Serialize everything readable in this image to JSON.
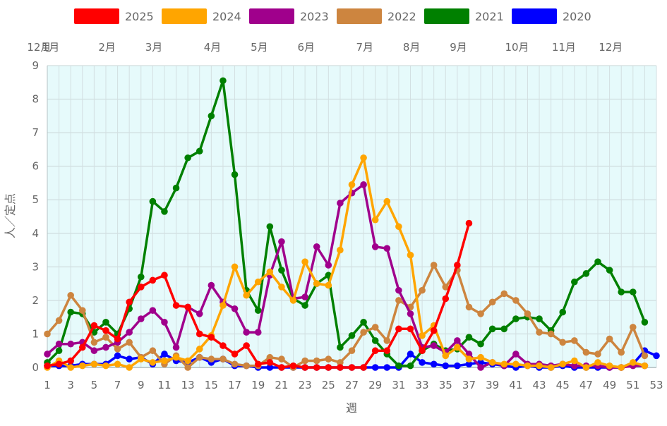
{
  "chart_data": {
    "type": "line",
    "xlabel": "週",
    "ylabel": "人／定点",
    "xlim": [
      1,
      53
    ],
    "ylim": [
      0,
      9
    ],
    "yticks": [
      0,
      1,
      2,
      3,
      4,
      5,
      6,
      7,
      8,
      9
    ],
    "xticks": [
      1,
      3,
      5,
      7,
      9,
      11,
      13,
      15,
      17,
      19,
      21,
      23,
      25,
      27,
      29,
      31,
      33,
      35,
      37,
      39,
      41,
      43,
      45,
      47,
      49,
      51,
      53
    ],
    "grid": true,
    "legend_position": "top",
    "plot_background": "#e6fafb",
    "month_labels": [
      {
        "label": "12月",
        "x": 0.3
      },
      {
        "label": "1月",
        "x": 1.3
      },
      {
        "label": "2月",
        "x": 6.1
      },
      {
        "label": "3月",
        "x": 10.1
      },
      {
        "label": "4月",
        "x": 15.1
      },
      {
        "label": "5月",
        "x": 19.1
      },
      {
        "label": "6月",
        "x": 23.1
      },
      {
        "label": "7月",
        "x": 28.1
      },
      {
        "label": "8月",
        "x": 32.1
      },
      {
        "label": "9月",
        "x": 36.1
      },
      {
        "label": "10月",
        "x": 41.1
      },
      {
        "label": "11月",
        "x": 45.1
      },
      {
        "label": "12月",
        "x": 49.1
      }
    ],
    "series": [
      {
        "name": "2025",
        "color": "#ff0000",
        "x": [
          1,
          2,
          3,
          4,
          5,
          6,
          7,
          8,
          9,
          10,
          11,
          12,
          13,
          14,
          15,
          16,
          17,
          18,
          19,
          20,
          21,
          22,
          23,
          24,
          25,
          26,
          27,
          28,
          29,
          30,
          31,
          32,
          33,
          34,
          35,
          36,
          37
        ],
        "values": [
          0.05,
          0.1,
          0.2,
          0.6,
          1.25,
          1.1,
          0.85,
          1.95,
          2.4,
          2.6,
          2.75,
          1.85,
          1.8,
          1.0,
          0.9,
          0.65,
          0.4,
          0.65,
          0.1,
          0.15,
          0.0,
          0.05,
          0.0,
          0.0,
          0.0,
          0.0,
          0.0,
          0.0,
          0.5,
          0.5,
          1.15,
          1.15,
          0.5,
          1.1,
          2.05,
          3.05,
          4.3
        ]
      },
      {
        "name": "2024",
        "color": "#ffa500",
        "x": [
          1,
          2,
          3,
          4,
          5,
          6,
          7,
          8,
          9,
          10,
          11,
          12,
          13,
          14,
          15,
          16,
          17,
          18,
          19,
          20,
          21,
          22,
          23,
          24,
          25,
          26,
          27,
          28,
          29,
          30,
          31,
          32,
          33,
          34,
          35,
          36,
          37,
          38,
          39,
          40,
          41,
          42,
          43,
          44,
          45,
          46,
          47,
          48,
          49,
          50,
          51,
          52
        ],
        "values": [
          0.0,
          0.2,
          0.0,
          0.05,
          0.1,
          0.05,
          0.1,
          0.0,
          0.25,
          0.15,
          0.2,
          0.3,
          0.2,
          0.55,
          0.95,
          1.85,
          3.0,
          2.15,
          2.55,
          2.85,
          2.4,
          2.0,
          3.15,
          2.5,
          2.45,
          3.5,
          5.45,
          6.25,
          4.4,
          4.95,
          4.2,
          3.35,
          0.95,
          1.25,
          0.35,
          0.6,
          0.25,
          0.3,
          0.15,
          0.1,
          0.1,
          0.05,
          0.05,
          0.0,
          0.1,
          0.2,
          0.0,
          0.15,
          0.05,
          0.0,
          0.15,
          0.05
        ]
      },
      {
        "name": "2023",
        "color": "#a0008c",
        "x": [
          1,
          2,
          3,
          4,
          5,
          6,
          7,
          8,
          9,
          10,
          11,
          12,
          13,
          14,
          15,
          16,
          17,
          18,
          19,
          20,
          21,
          22,
          23,
          24,
          25,
          26,
          27,
          28,
          29,
          30,
          31,
          32,
          33,
          34,
          35,
          36,
          37,
          38,
          39,
          40,
          41,
          42,
          43,
          44,
          45,
          46,
          47,
          48,
          49,
          50,
          51,
          52
        ],
        "values": [
          0.4,
          0.7,
          0.7,
          0.75,
          0.5,
          0.6,
          0.75,
          1.05,
          1.45,
          1.7,
          1.35,
          0.6,
          1.8,
          1.6,
          2.45,
          1.95,
          1.75,
          1.05,
          1.05,
          2.75,
          3.75,
          2.05,
          2.1,
          3.6,
          3.05,
          4.9,
          5.2,
          5.45,
          3.6,
          3.55,
          2.3,
          1.6,
          0.6,
          0.65,
          0.45,
          0.8,
          0.4,
          0.0,
          0.15,
          0.05,
          0.4,
          0.1,
          0.1,
          0.05,
          0.1,
          0.05,
          0.05,
          0.05,
          0.0,
          0.0,
          0.05,
          0.05
        ]
      },
      {
        "name": "2022",
        "color": "#cd853f",
        "x": [
          1,
          2,
          3,
          4,
          5,
          6,
          7,
          8,
          9,
          10,
          11,
          12,
          13,
          14,
          15,
          16,
          17,
          18,
          19,
          20,
          21,
          22,
          23,
          24,
          25,
          26,
          27,
          28,
          29,
          30,
          31,
          32,
          33,
          34,
          35,
          36,
          37,
          38,
          39,
          40,
          41,
          42,
          43,
          44,
          45,
          46,
          47,
          48,
          49,
          50,
          51,
          52
        ],
        "values": [
          1.0,
          1.4,
          2.15,
          1.7,
          0.75,
          0.9,
          0.55,
          0.75,
          0.3,
          0.5,
          0.1,
          0.35,
          0.0,
          0.3,
          0.25,
          0.25,
          0.1,
          0.05,
          0.05,
          0.3,
          0.25,
          0.0,
          0.2,
          0.2,
          0.25,
          0.15,
          0.5,
          1.05,
          1.2,
          0.8,
          2.0,
          1.8,
          2.3,
          3.05,
          2.4,
          2.9,
          1.8,
          1.6,
          1.95,
          2.2,
          2.0,
          1.6,
          1.05,
          1.0,
          0.75,
          0.8,
          0.45,
          0.4,
          0.85,
          0.45,
          1.2,
          0.35
        ]
      },
      {
        "name": "2021",
        "color": "#008000",
        "x": [
          1,
          2,
          3,
          4,
          5,
          6,
          7,
          8,
          9,
          10,
          11,
          12,
          13,
          14,
          15,
          16,
          17,
          18,
          19,
          20,
          21,
          22,
          23,
          24,
          25,
          26,
          27,
          28,
          29,
          30,
          31,
          32,
          33,
          34,
          35,
          36,
          37,
          38,
          39,
          40,
          41,
          42,
          43,
          44,
          45,
          46,
          47,
          48,
          49,
          50,
          51,
          52
        ],
        "values": [
          0.15,
          0.5,
          1.65,
          1.6,
          1.05,
          1.35,
          1.0,
          1.75,
          2.7,
          4.95,
          4.65,
          5.35,
          6.25,
          6.45,
          7.5,
          8.55,
          5.75,
          2.3,
          1.7,
          4.2,
          2.9,
          2.05,
          1.85,
          2.5,
          2.75,
          0.6,
          0.95,
          1.35,
          0.8,
          0.4,
          0.05,
          0.05,
          0.5,
          0.7,
          0.5,
          0.55,
          0.9,
          0.7,
          1.15,
          1.15,
          1.45,
          1.5,
          1.45,
          1.1,
          1.65,
          2.55,
          2.8,
          3.15,
          2.9,
          2.25,
          2.25,
          1.35
        ]
      },
      {
        "name": "2020",
        "color": "#0000ff",
        "x": [
          1,
          2,
          3,
          4,
          5,
          6,
          7,
          8,
          9,
          10,
          11,
          12,
          13,
          14,
          15,
          16,
          17,
          18,
          19,
          20,
          21,
          22,
          23,
          24,
          25,
          26,
          27,
          28,
          29,
          30,
          31,
          32,
          33,
          34,
          35,
          36,
          37,
          38,
          39,
          40,
          41,
          42,
          43,
          44,
          45,
          46,
          47,
          48,
          49,
          50,
          51,
          52,
          53
        ],
        "values": [
          0.05,
          0.05,
          0.05,
          0.1,
          0.1,
          0.1,
          0.35,
          0.25,
          0.3,
          0.1,
          0.4,
          0.2,
          0.15,
          0.3,
          0.15,
          0.25,
          0.05,
          0.05,
          0.0,
          0.0,
          0.0,
          0.0,
          0.0,
          0.0,
          0.0,
          0.0,
          0.0,
          0.0,
          0.0,
          0.0,
          0.0,
          0.4,
          0.15,
          0.1,
          0.05,
          0.05,
          0.1,
          0.15,
          0.1,
          0.05,
          0.0,
          0.05,
          0.0,
          0.0,
          0.05,
          0.0,
          0.0,
          0.0,
          0.0,
          0.0,
          0.1,
          0.5,
          0.35
        ]
      }
    ]
  }
}
